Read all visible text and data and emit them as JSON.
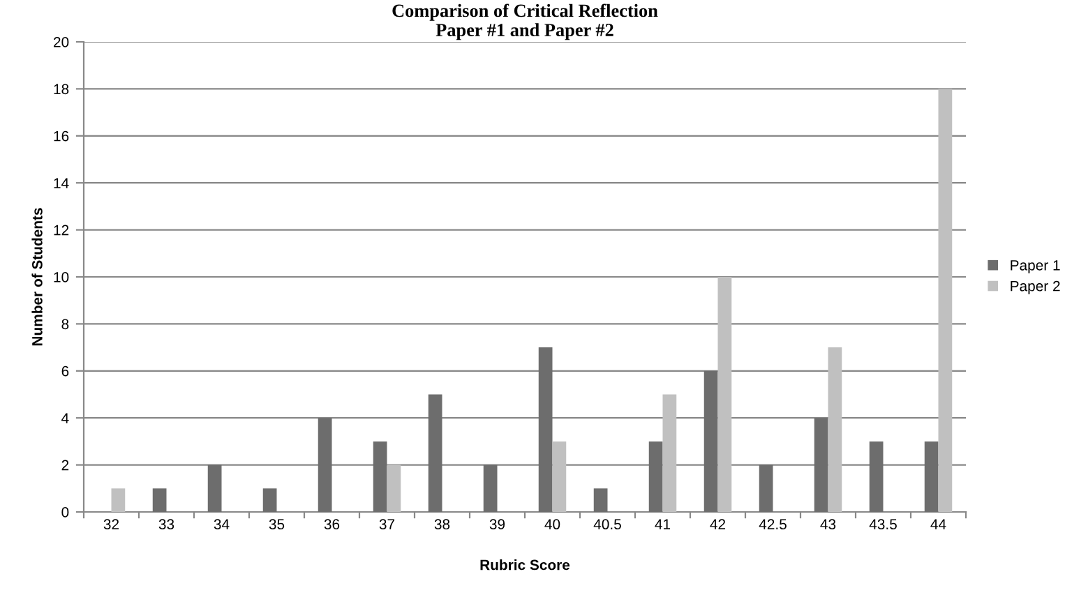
{
  "chart_data": {
    "type": "bar",
    "title": "Comparison of Critical Reflection\nPaper #1 and Paper #2",
    "xlabel": "Rubric Score",
    "ylabel": "Number of Students",
    "categories": [
      "32",
      "33",
      "34",
      "35",
      "36",
      "37",
      "38",
      "39",
      "40",
      "40.5",
      "41",
      "42",
      "42.5",
      "43",
      "43.5",
      "44"
    ],
    "series": [
      {
        "name": "Paper 1",
        "color": "#6d6d6d",
        "values": [
          null,
          1,
          2,
          1,
          4,
          3,
          5,
          2,
          7,
          1,
          3,
          6,
          2,
          4,
          3,
          3
        ]
      },
      {
        "name": "Paper 2",
        "color": "#c0c0c0",
        "values": [
          1,
          null,
          null,
          null,
          null,
          2,
          null,
          null,
          3,
          null,
          5,
          10,
          null,
          7,
          null,
          18
        ]
      }
    ],
    "ylim": [
      0,
      20
    ],
    "yticks": [
      0,
      2,
      4,
      6,
      8,
      10,
      12,
      14,
      16,
      18,
      20
    ],
    "grid": "y",
    "legend": "right"
  }
}
